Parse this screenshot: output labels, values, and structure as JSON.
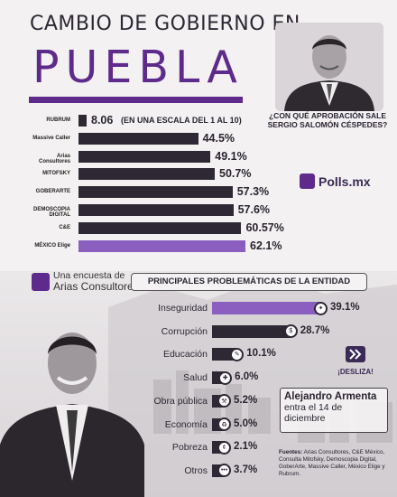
{
  "header": {
    "title_top": "CAMBIO DE GOBIERNO EN",
    "title_big": "PUEBLA",
    "question": "¿CON QUÉ APROBACIÓN SALE SERGIO SALOMÓN CÉSPEDES?"
  },
  "brand": {
    "polls": "Polls.mx"
  },
  "colors": {
    "accent": "#5e2a8c",
    "bar_dark": "#2e2835",
    "bar_light": "#8a5fc0"
  },
  "chart_data": [
    {
      "type": "bar",
      "orientation": "horizontal",
      "title": "¿CON QUÉ APROBACIÓN SALE SERGIO SALOMÓN CÉSPEDES?",
      "categories": [
        "RUBRUM",
        "Massive Caller",
        "Arias Consultores",
        "MITOFSKY",
        "GOBERARTE",
        "DEMOSCOPIA DIGITAL",
        "C&E",
        "MÉXICO Elige"
      ],
      "values": [
        8.06,
        44.5,
        49.1,
        50.7,
        57.3,
        57.6,
        60.57,
        62.1
      ],
      "labels": [
        "8.06",
        "44.5%",
        "49.1%",
        "50.7%",
        "57.3%",
        "57.6%",
        "60.57%",
        "62.1%"
      ],
      "scale_note": "(EN UNA ESCALA DEL 1 AL 10)"
    },
    {
      "type": "bar",
      "orientation": "horizontal",
      "title": "PRINCIPALES PROBLEMÁTICAS DE LA ENTIDAD",
      "categories": [
        "Inseguridad",
        "Corrupción",
        "Educación",
        "Salud",
        "Obra pública",
        "Economía",
        "Pobreza",
        "Otros"
      ],
      "values": [
        39.1,
        28.7,
        10.1,
        6.0,
        5.2,
        5.0,
        2.1,
        3.7
      ],
      "labels": [
        "39.1%",
        "28.7%",
        "10.1%",
        "6.0%",
        "5.2%",
        "5.0%",
        "2.1%",
        "3.7%"
      ],
      "icons": [
        "gun-icon",
        "money-bag-icon",
        "graduation-cap-icon",
        "medical-cross-icon",
        "construction-worker-icon",
        "money-cycle-icon",
        "coins-icon",
        "ellipsis-icon"
      ]
    }
  ],
  "survey": {
    "line1": "Una encuesta de",
    "line2": "Arias Consultores"
  },
  "armenta": {
    "name": "Alejandro Armenta",
    "line2": "entra el 14 de",
    "line3": "diciembre"
  },
  "desliza": "¡DESLIZA!",
  "sources": {
    "label": "Fuentes:",
    "text": "Arias Consultores, C&E México, Consulta Mitofsky, Demoscopia Digital, GoberArte, Massive Caller, México Elige y Rubrum."
  }
}
